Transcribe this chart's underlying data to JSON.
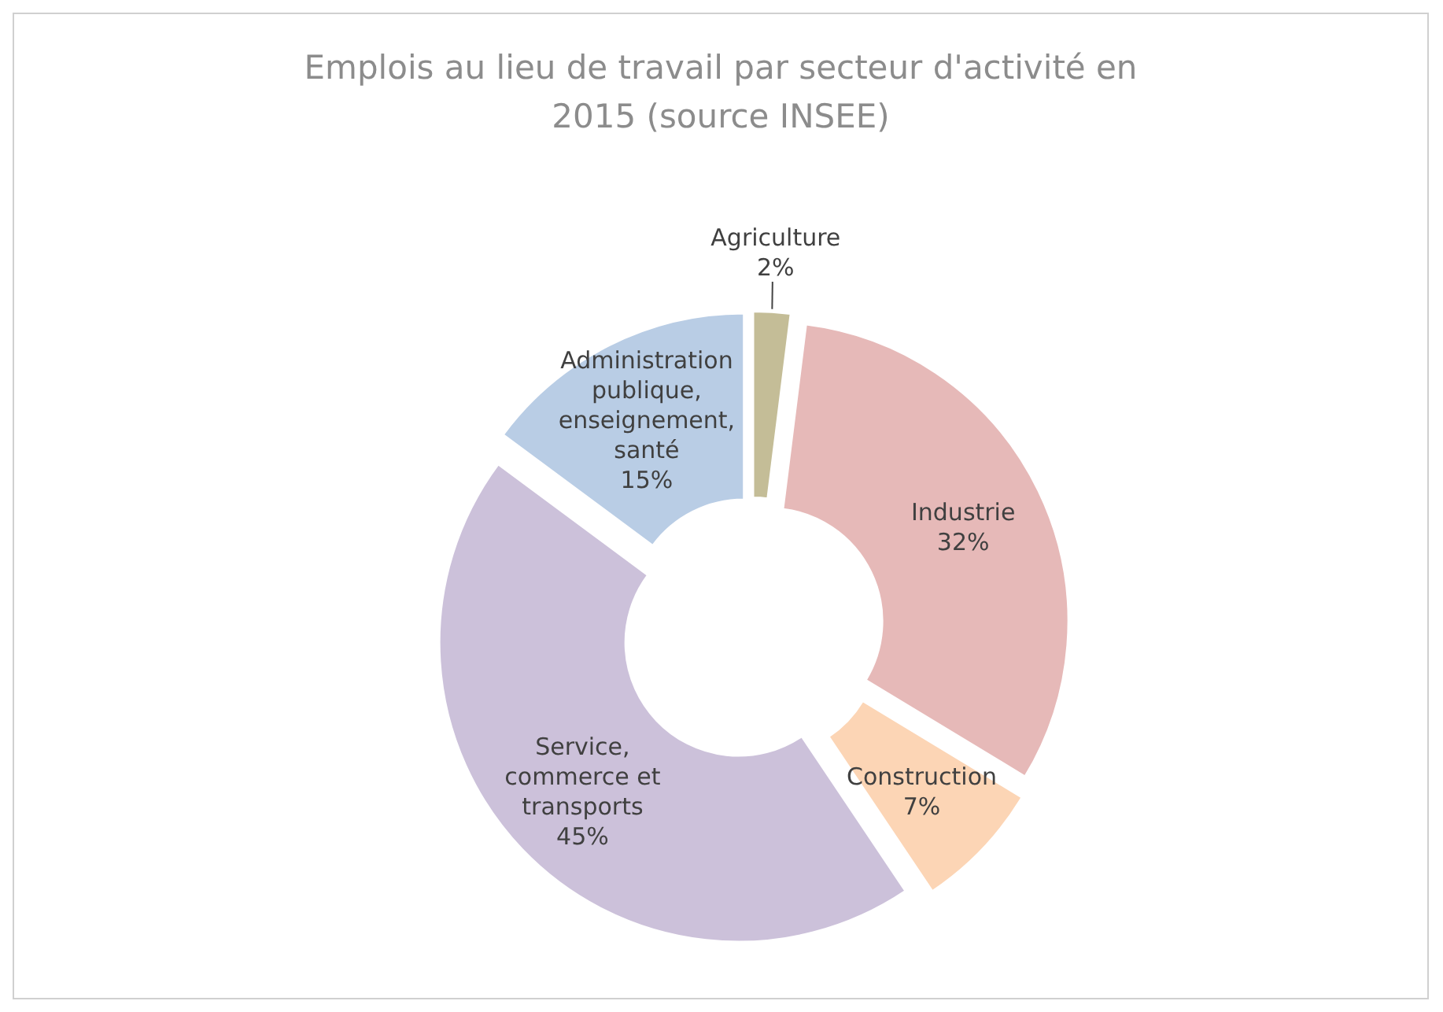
{
  "chart_data": {
    "type": "donut",
    "title": "Emplois au lieu de travail par secteur d'activité en 2015 (source INSEE)",
    "categories": [
      "Agriculture",
      "Industrie",
      "Construction",
      "Service, commerce et transports",
      "Administration publique, enseignement, santé"
    ],
    "values": [
      2,
      32,
      7,
      45,
      15
    ],
    "value_labels": [
      "2%",
      "32%",
      "7%",
      "45%",
      "15%"
    ],
    "colors": [
      "#c4bd97",
      "#e6b9b8",
      "#fcd5b5",
      "#ccc1da",
      "#b9cde5"
    ]
  }
}
